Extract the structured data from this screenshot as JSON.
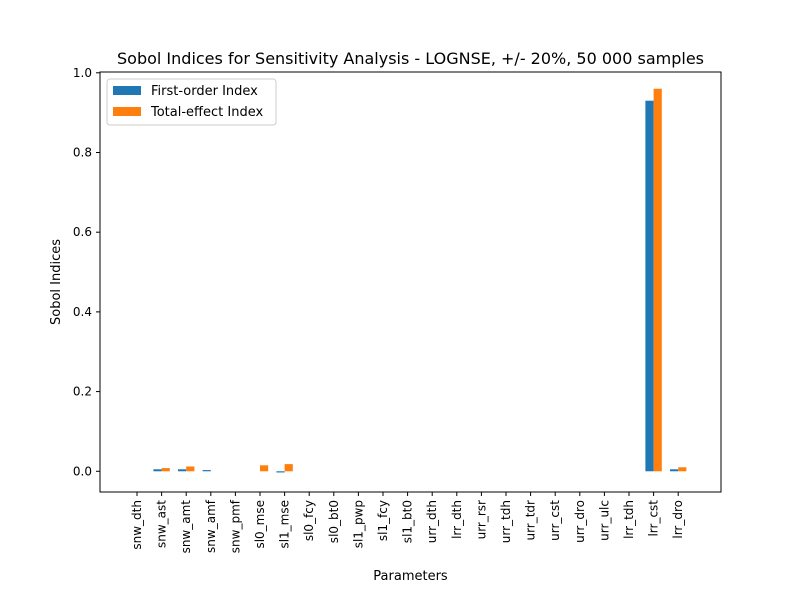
{
  "chart_data": {
    "type": "bar",
    "title": "Sobol Indices for Sensitivity Analysis - LOGNSE, +/- 20%, 50 000 samples",
    "xlabel": "Parameters",
    "ylabel": "Sobol Indices",
    "ylim": [
      -0.052,
      1.002
    ],
    "yticks": [
      0.0,
      0.2,
      0.4,
      0.6,
      0.8,
      1.0
    ],
    "ytick_labels": [
      "0.0",
      "0.2",
      "0.4",
      "0.6",
      "0.8",
      "1.0"
    ],
    "legend_position": "top-left",
    "categories": [
      "snw_dth",
      "snw_ast",
      "snw_amt",
      "snw_amf",
      "snw_pmf",
      "sl0_mse",
      "sl1_mse",
      "sl0_fcy",
      "sl0_bt0",
      "sl1_pwp",
      "sl1_fcy",
      "sl1_bt0",
      "urr_dth",
      "lrr_dth",
      "urr_rsr",
      "urr_tdh",
      "urr_tdr",
      "urr_cst",
      "urr_dro",
      "urr_ulc",
      "lrr_tdh",
      "lrr_cst",
      "lrr_dro"
    ],
    "series": [
      {
        "name": "First-order Index",
        "color": "#1f77b4",
        "values": [
          0.0,
          0.005,
          0.005,
          0.003,
          0.0,
          0.0,
          -0.003,
          0.0,
          0.0,
          0.0,
          0.0,
          0.0,
          0.0,
          0.0,
          0.0,
          0.0,
          0.0,
          0.0,
          0.0,
          0.0,
          0.0,
          0.93,
          0.005
        ]
      },
      {
        "name": "Total-effect Index",
        "color": "#ff7f0e",
        "values": [
          0.0,
          0.008,
          0.012,
          0.0,
          0.0,
          0.015,
          0.018,
          0.0,
          0.0,
          0.0,
          0.0,
          0.0,
          0.0,
          0.0,
          0.0,
          0.0,
          0.0,
          0.0,
          0.0,
          0.0,
          0.0,
          0.96,
          0.01
        ]
      }
    ]
  }
}
